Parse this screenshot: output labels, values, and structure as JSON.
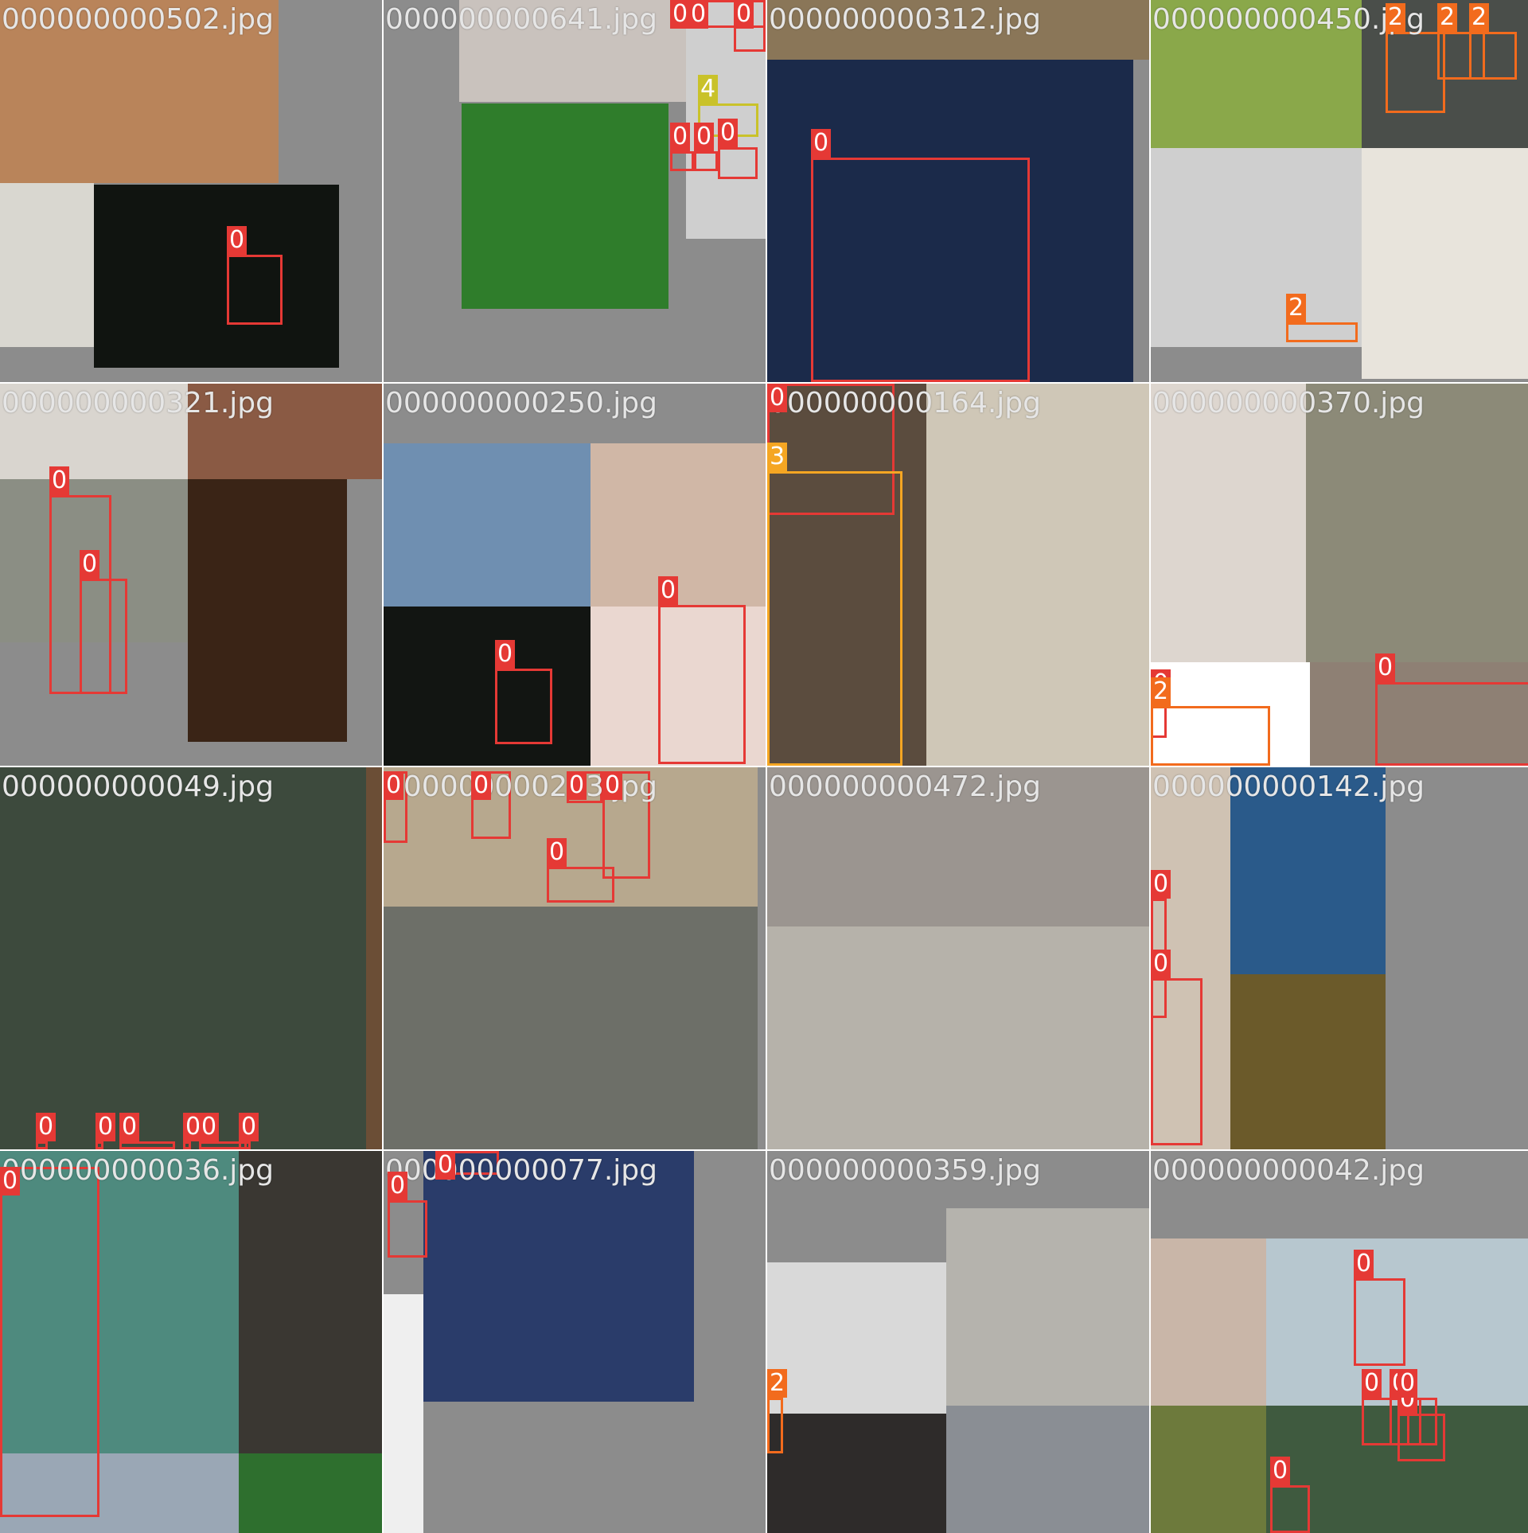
{
  "mosaic": {
    "tiles": [
      {
        "filename": "000000000502.jpg",
        "labels": [
          "0"
        ]
      },
      {
        "filename": "000000000641.jpg",
        "labels": [
          "0",
          "0",
          "0",
          "4",
          "0",
          "0",
          "0"
        ]
      },
      {
        "filename": "000000000312.jpg",
        "labels": [
          "0"
        ]
      },
      {
        "filename": "000000000450.jpg",
        "labels": [
          "0",
          "2",
          "2",
          "2",
          "2"
        ]
      },
      {
        "filename": "000000000321.jpg",
        "labels": [
          "0",
          "0"
        ]
      },
      {
        "filename": "000000000250.jpg",
        "labels": [
          "0",
          "0"
        ]
      },
      {
        "filename": "000000000164.jpg",
        "labels": [
          "0",
          "3"
        ]
      },
      {
        "filename": "000000000370.jpg",
        "labels": [
          "0",
          "2",
          "0"
        ]
      },
      {
        "filename": "000000000049.jpg",
        "labels": [
          "0",
          "0",
          "0",
          "0",
          "0",
          "0"
        ]
      },
      {
        "filename": "000000000263.jpg",
        "labels": [
          "0",
          "0",
          "0",
          "0",
          "0"
        ]
      },
      {
        "filename": "000000000472.jpg",
        "labels": []
      },
      {
        "filename": "000000000142.jpg",
        "labels": [
          "0",
          "0"
        ]
      },
      {
        "filename": "000000000036.jpg",
        "labels": [
          "0"
        ]
      },
      {
        "filename": "000000000077.jpg",
        "labels": [
          "0",
          "0"
        ]
      },
      {
        "filename": "000000000359.jpg",
        "labels": [
          "2"
        ]
      },
      {
        "filename": "000000000042.jpg",
        "labels": [
          "0",
          "0",
          "0",
          "0",
          "0",
          "0"
        ]
      }
    ]
  },
  "class_colors": {
    "0": "#e53935",
    "2": "#f26b1d",
    "3": "#f5a623",
    "4": "#c9c22a"
  }
}
